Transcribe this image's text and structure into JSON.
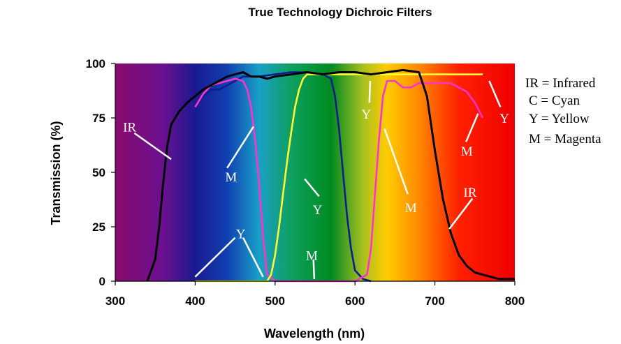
{
  "chart_data": {
    "type": "line",
    "title": "True Technology Dichroic Filters",
    "xlabel": "Wavelength (nm)",
    "ylabel": "Transmission (%)",
    "xlim": [
      300,
      800
    ],
    "ylim": [
      0,
      100
    ],
    "x_ticks": [
      300,
      400,
      500,
      600,
      700,
      800
    ],
    "x_tick_labels": [
      "300",
      "400",
      "500",
      "600",
      "700",
      "800"
    ],
    "y_ticks": [
      0,
      25,
      50,
      75,
      100
    ],
    "y_tick_labels": [
      "0",
      "25",
      "50",
      "75",
      "100"
    ],
    "background": "visible spectrum gradient",
    "grid": false,
    "legend": {
      "placement": "right",
      "entries": [
        "IR = Infrared",
        "C = Cyan",
        "Y = Yellow",
        "M = Magenta"
      ]
    },
    "series": [
      {
        "name": "IR",
        "color": "#000000",
        "x": [
          340,
          350,
          355,
          360,
          365,
          370,
          380,
          390,
          400,
          410,
          420,
          430,
          440,
          450,
          460,
          470,
          480,
          490,
          500,
          520,
          540,
          560,
          580,
          600,
          620,
          640,
          660,
          680,
          690,
          700,
          710,
          720,
          730,
          740,
          750,
          760,
          780,
          800
        ],
        "y": [
          0,
          10,
          25,
          45,
          62,
          72,
          78,
          82,
          85,
          88,
          90,
          92,
          94,
          95,
          96,
          94,
          94,
          93,
          94,
          95,
          96,
          95,
          96,
          96,
          95,
          96,
          97,
          96,
          85,
          60,
          38,
          22,
          12,
          7,
          4,
          3,
          1,
          1
        ]
      },
      {
        "name": "C",
        "color": "#0a1f8c",
        "x": [
          400,
          410,
          420,
          430,
          440,
          450,
          460,
          470,
          480,
          500,
          520,
          540,
          560,
          570,
          575,
          580,
          585,
          590,
          595,
          600,
          610,
          620
        ],
        "y": [
          80,
          85,
          88,
          88,
          90,
          92,
          94,
          94,
          94,
          95,
          96,
          96,
          95,
          93,
          85,
          70,
          50,
          30,
          15,
          5,
          1,
          0
        ]
      },
      {
        "name": "M",
        "color": "#ff33cc",
        "x": [
          400,
          410,
          420,
          430,
          440,
          450,
          460,
          465,
          470,
          475,
          480,
          485,
          490,
          500,
          600,
          615,
          620,
          625,
          630,
          635,
          640,
          650,
          660,
          670,
          680,
          690,
          700,
          710,
          720,
          730,
          740,
          750,
          760
        ],
        "y": [
          80,
          86,
          90,
          91,
          92,
          93,
          92,
          88,
          80,
          65,
          45,
          20,
          3,
          0,
          0,
          3,
          15,
          40,
          65,
          85,
          92,
          92,
          89,
          89,
          91,
          91,
          91,
          91,
          91,
          89,
          87,
          82,
          75
        ]
      },
      {
        "name": "Y",
        "color": "#ffff33",
        "x": [
          400,
          490,
          495,
          500,
          505,
          510,
          515,
          520,
          525,
          530,
          535,
          540,
          560,
          600,
          650,
          700,
          760
        ],
        "y": [
          0,
          0,
          3,
          12,
          25,
          40,
          55,
          68,
          80,
          88,
          93,
          95,
          95,
          95,
          95,
          95,
          95
        ]
      }
    ],
    "annotations": [
      {
        "text": "IR",
        "label_x": 318,
        "label_y": 71,
        "from": [
          324,
          68
        ],
        "to": [
          370,
          56
        ]
      },
      {
        "text": "M",
        "label_x": 445,
        "label_y": 48,
        "from": [
          440,
          52
        ],
        "to": [
          473,
          71
        ]
      },
      {
        "text": "Y",
        "label_x": 553,
        "label_y": 33,
        "from": [
          555,
          39
        ],
        "to": [
          537,
          47
        ]
      },
      {
        "text": "Y",
        "label_x": 614,
        "label_y": 77,
        "from": [
          618,
          82
        ],
        "to": [
          619,
          92
        ]
      },
      {
        "text": "M",
        "label_x": 740,
        "label_y": 60,
        "from": [
          739,
          64
        ],
        "to": [
          754,
          77
        ]
      },
      {
        "text": "Y",
        "label_x": 787,
        "label_y": 75,
        "from": [
          782,
          80
        ],
        "to": [
          768,
          92
        ]
      },
      {
        "text": "M",
        "label_x": 670,
        "label_y": 34,
        "from": [
          666,
          40
        ],
        "to": [
          637,
          70
        ]
      },
      {
        "text": "IR",
        "label_x": 744,
        "label_y": 41,
        "from": [
          747,
          38
        ],
        "to": [
          718,
          24
        ]
      },
      {
        "text": "Y",
        "label_x": 457,
        "label_y": 22,
        "from": [
          450,
          20
        ],
        "to": [
          400,
          2
        ]
      },
      {
        "text": "",
        "label_x": 457,
        "label_y": 22,
        "from": [
          460,
          20
        ],
        "to": [
          485,
          2
        ]
      },
      {
        "text": "M",
        "label_x": 546,
        "label_y": 12,
        "from": [
          548,
          10
        ],
        "to": [
          549,
          1
        ]
      }
    ]
  }
}
